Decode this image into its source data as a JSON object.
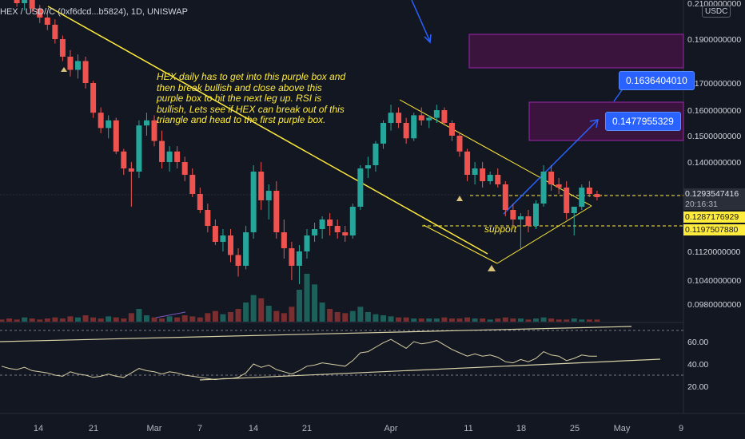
{
  "header": {
    "symbol_legend": "HEX / USD//C (0xf6dcd...b5824), 1D, UNISWAP",
    "currency": "USDC"
  },
  "annotations": {
    "note": "HEX daily has to get into this purple box and then break bullish and close above this purple box to hit the next leg up. RSI is bullish, Lets see if HEX can break out of this triangle and head to the first purple box.",
    "support_label": "support",
    "callout_upper": "0.1636404010",
    "callout_lower": "0.1477955329"
  },
  "price_tags": {
    "last_price": "0.1293547416",
    "countdown": "20:16:31",
    "level_1": "0.1287176929",
    "level_2": "0.1197507880"
  },
  "colors": {
    "background": "#131722",
    "up": "#26a69a",
    "down": "#ef5350",
    "up_volume": "#1d5f5a",
    "down_volume": "#7a2e30",
    "trendline": "#ffeb3b",
    "purple_box_fill": "#4a1448",
    "purple_box_border": "#9c27b0",
    "arrow": "#2962ff",
    "rsi_line": "#d6cfa4"
  },
  "chart_data": {
    "type": "candlestick",
    "price_axis_labels": [
      "0.2100000000",
      "0.1900000000",
      "0.1700000000",
      "0.1600000000",
      "0.1500000000",
      "0.1400000000",
      "0.1120000000",
      "0.1040000000",
      "0.0980000000"
    ],
    "rsi_axis_labels": [
      "60.00",
      "40.00",
      "20.00"
    ],
    "x_tick_labels": [
      "14",
      "21",
      "Mar",
      "7",
      "14",
      "21",
      "Apr",
      "11",
      "18",
      "25",
      "May",
      "9"
    ],
    "candles_ohlc": [
      [
        0.219,
        0.222,
        0.215,
        0.217
      ],
      [
        0.217,
        0.22,
        0.212,
        0.214
      ],
      [
        0.214,
        0.216,
        0.208,
        0.21
      ],
      [
        0.21,
        0.215,
        0.206,
        0.212
      ],
      [
        0.212,
        0.214,
        0.205,
        0.207
      ],
      [
        0.207,
        0.209,
        0.199,
        0.202
      ],
      [
        0.202,
        0.205,
        0.195,
        0.198
      ],
      [
        0.198,
        0.201,
        0.188,
        0.19
      ],
      [
        0.19,
        0.192,
        0.18,
        0.182
      ],
      [
        0.182,
        0.185,
        0.173,
        0.176
      ],
      [
        0.176,
        0.183,
        0.172,
        0.18
      ],
      [
        0.18,
        0.182,
        0.168,
        0.17
      ],
      [
        0.17,
        0.171,
        0.157,
        0.159
      ],
      [
        0.159,
        0.161,
        0.151,
        0.153
      ],
      [
        0.153,
        0.158,
        0.149,
        0.156
      ],
      [
        0.156,
        0.157,
        0.143,
        0.144
      ],
      [
        0.144,
        0.145,
        0.136,
        0.138
      ],
      [
        0.138,
        0.14,
        0.126,
        0.137
      ],
      [
        0.137,
        0.156,
        0.135,
        0.154
      ],
      [
        0.154,
        0.159,
        0.15,
        0.156
      ],
      [
        0.156,
        0.158,
        0.146,
        0.148
      ],
      [
        0.148,
        0.152,
        0.138,
        0.14
      ],
      [
        0.14,
        0.146,
        0.137,
        0.144
      ],
      [
        0.144,
        0.146,
        0.138,
        0.14
      ],
      [
        0.14,
        0.142,
        0.134,
        0.136
      ],
      [
        0.136,
        0.138,
        0.129,
        0.13
      ],
      [
        0.13,
        0.132,
        0.124,
        0.125
      ],
      [
        0.125,
        0.127,
        0.118,
        0.12
      ],
      [
        0.12,
        0.122,
        0.114,
        0.115
      ],
      [
        0.115,
        0.119,
        0.112,
        0.117
      ],
      [
        0.117,
        0.119,
        0.109,
        0.111
      ],
      [
        0.111,
        0.113,
        0.105,
        0.108
      ],
      [
        0.108,
        0.12,
        0.107,
        0.118
      ],
      [
        0.118,
        0.139,
        0.116,
        0.137
      ],
      [
        0.137,
        0.14,
        0.125,
        0.128
      ],
      [
        0.128,
        0.133,
        0.122,
        0.131
      ],
      [
        0.131,
        0.134,
        0.116,
        0.118
      ],
      [
        0.118,
        0.122,
        0.11,
        0.113
      ],
      [
        0.113,
        0.115,
        0.104,
        0.108
      ],
      [
        0.108,
        0.114,
        0.103,
        0.112
      ],
      [
        0.112,
        0.119,
        0.11,
        0.117
      ],
      [
        0.117,
        0.121,
        0.115,
        0.119
      ],
      [
        0.119,
        0.123,
        0.116,
        0.122
      ],
      [
        0.122,
        0.124,
        0.117,
        0.12
      ],
      [
        0.12,
        0.122,
        0.116,
        0.118
      ],
      [
        0.118,
        0.12,
        0.115,
        0.117
      ],
      [
        0.117,
        0.127,
        0.116,
        0.126
      ],
      [
        0.126,
        0.139,
        0.125,
        0.138
      ],
      [
        0.138,
        0.142,
        0.135,
        0.139
      ],
      [
        0.139,
        0.148,
        0.137,
        0.147
      ],
      [
        0.147,
        0.156,
        0.145,
        0.155
      ],
      [
        0.155,
        0.162,
        0.152,
        0.159
      ],
      [
        0.159,
        0.161,
        0.153,
        0.155
      ],
      [
        0.155,
        0.157,
        0.147,
        0.149
      ],
      [
        0.149,
        0.159,
        0.148,
        0.158
      ],
      [
        0.158,
        0.161,
        0.154,
        0.156
      ],
      [
        0.156,
        0.158,
        0.153,
        0.157
      ],
      [
        0.157,
        0.162,
        0.155,
        0.16
      ],
      [
        0.16,
        0.161,
        0.154,
        0.155
      ],
      [
        0.155,
        0.156,
        0.148,
        0.15
      ],
      [
        0.15,
        0.151,
        0.142,
        0.144
      ],
      [
        0.144,
        0.145,
        0.134,
        0.136
      ],
      [
        0.136,
        0.14,
        0.133,
        0.138
      ],
      [
        0.138,
        0.14,
        0.132,
        0.134
      ],
      [
        0.134,
        0.137,
        0.133,
        0.136
      ],
      [
        0.136,
        0.138,
        0.132,
        0.133
      ],
      [
        0.133,
        0.134,
        0.123,
        0.125
      ],
      [
        0.125,
        0.127,
        0.12,
        0.122
      ],
      [
        0.122,
        0.124,
        0.113,
        0.123
      ],
      [
        0.123,
        0.125,
        0.118,
        0.12
      ],
      [
        0.12,
        0.128,
        0.119,
        0.127
      ],
      [
        0.127,
        0.139,
        0.126,
        0.137
      ],
      [
        0.137,
        0.139,
        0.131,
        0.133
      ],
      [
        0.133,
        0.135,
        0.13,
        0.132
      ],
      [
        0.132,
        0.134,
        0.122,
        0.124
      ],
      [
        0.124,
        0.126,
        0.117,
        0.126
      ],
      [
        0.126,
        0.133,
        0.125,
        0.132
      ],
      [
        0.132,
        0.134,
        0.129,
        0.13
      ],
      [
        0.13,
        0.131,
        0.128,
        0.129
      ]
    ],
    "volume": [
      2,
      3,
      2,
      4,
      3,
      2,
      3,
      4,
      3,
      5,
      4,
      6,
      4,
      3,
      5,
      4,
      3,
      8,
      12,
      6,
      4,
      3,
      5,
      4,
      6,
      5,
      4,
      8,
      10,
      7,
      9,
      12,
      18,
      25,
      22,
      15,
      10,
      8,
      14,
      30,
      45,
      35,
      18,
      12,
      9,
      8,
      10,
      14,
      9,
      7,
      6,
      5,
      4,
      4,
      3,
      3,
      3,
      3,
      4,
      3,
      3,
      4,
      3,
      3,
      2,
      3,
      4,
      3,
      3,
      2,
      3,
      4,
      3,
      2,
      2,
      3,
      2,
      2,
      2
    ],
    "rsi": [
      38,
      36,
      35,
      37,
      34,
      33,
      32,
      30,
      29,
      33,
      31,
      30,
      28,
      29,
      31,
      29,
      28,
      32,
      36,
      34,
      33,
      31,
      33,
      32,
      30,
      29,
      28,
      27,
      26,
      27,
      27,
      28,
      32,
      40,
      37,
      39,
      35,
      33,
      31,
      34,
      38,
      39,
      41,
      40,
      39,
      38,
      43,
      50,
      51,
      55,
      59,
      62,
      58,
      54,
      60,
      58,
      59,
      61,
      57,
      53,
      50,
      47,
      49,
      47,
      48,
      46,
      42,
      41,
      44,
      42,
      45,
      51,
      48,
      47,
      43,
      45,
      48,
      47,
      47
    ]
  }
}
